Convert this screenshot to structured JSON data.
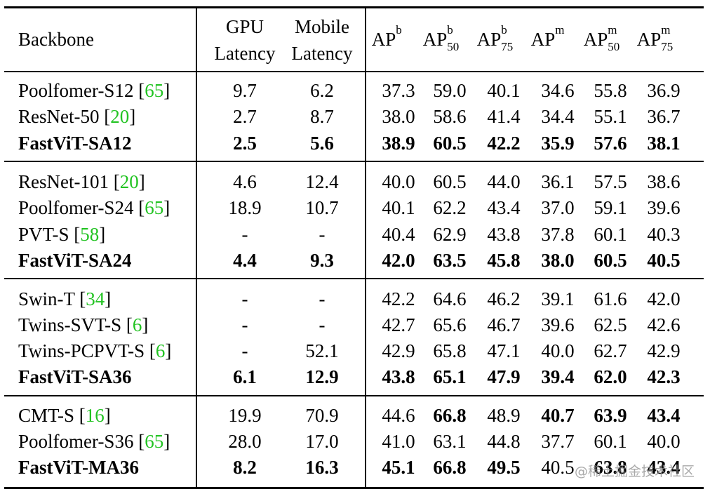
{
  "header": {
    "backbone": "Backbone",
    "gpu_line1": "GPU",
    "gpu_line2": "Latency",
    "mobile_line1": "Mobile",
    "mobile_line2": "Latency",
    "ap_columns": [
      {
        "base": "AP",
        "sup": "b",
        "sub": ""
      },
      {
        "base": "AP",
        "sup": "b",
        "sub": "50"
      },
      {
        "base": "AP",
        "sup": "b",
        "sub": "75"
      },
      {
        "base": "AP",
        "sup": "m",
        "sub": ""
      },
      {
        "base": "AP",
        "sup": "m",
        "sub": "50"
      },
      {
        "base": "AP",
        "sup": "m",
        "sub": "75"
      }
    ]
  },
  "groups": [
    {
      "rows": [
        {
          "name": "Poolfomer-S12 ",
          "ref": "65",
          "gpu": "9.7",
          "mobile": "6.2",
          "ap": [
            "37.3",
            "59.0",
            "40.1",
            "34.6",
            "55.8",
            "36.9"
          ],
          "bold_name": false,
          "bold_lat": false,
          "bold_ap": [
            false,
            false,
            false,
            false,
            false,
            false
          ]
        },
        {
          "name": "ResNet-50 ",
          "ref": "20",
          "gpu": "2.7",
          "mobile": "8.7",
          "ap": [
            "38.0",
            "58.6",
            "41.4",
            "34.4",
            "55.1",
            "36.7"
          ],
          "bold_name": false,
          "bold_lat": false,
          "bold_ap": [
            false,
            false,
            false,
            false,
            false,
            false
          ]
        },
        {
          "name": "FastViT-SA12",
          "ref": "",
          "gpu": "2.5",
          "mobile": "5.6",
          "ap": [
            "38.9",
            "60.5",
            "42.2",
            "35.9",
            "57.6",
            "38.1"
          ],
          "bold_name": true,
          "bold_lat": true,
          "bold_ap": [
            true,
            true,
            true,
            true,
            true,
            true
          ]
        }
      ]
    },
    {
      "rows": [
        {
          "name": "ResNet-101 ",
          "ref": "20",
          "gpu": "4.6",
          "mobile": "12.4",
          "ap": [
            "40.0",
            "60.5",
            "44.0",
            "36.1",
            "57.5",
            "38.6"
          ],
          "bold_name": false,
          "bold_lat": false,
          "bold_ap": [
            false,
            false,
            false,
            false,
            false,
            false
          ]
        },
        {
          "name": "Poolfomer-S24 ",
          "ref": "65",
          "gpu": "18.9",
          "mobile": "10.7",
          "ap": [
            "40.1",
            "62.2",
            "43.4",
            "37.0",
            "59.1",
            "39.6"
          ],
          "bold_name": false,
          "bold_lat": false,
          "bold_ap": [
            false,
            false,
            false,
            false,
            false,
            false
          ]
        },
        {
          "name": "PVT-S ",
          "ref": "58",
          "gpu": "-",
          "mobile": "-",
          "ap": [
            "40.4",
            "62.9",
            "43.8",
            "37.8",
            "60.1",
            "40.3"
          ],
          "bold_name": false,
          "bold_lat": false,
          "bold_ap": [
            false,
            false,
            false,
            false,
            false,
            false
          ]
        },
        {
          "name": "FastViT-SA24",
          "ref": "",
          "gpu": "4.4",
          "mobile": "9.3",
          "ap": [
            "42.0",
            "63.5",
            "45.8",
            "38.0",
            "60.5",
            "40.5"
          ],
          "bold_name": true,
          "bold_lat": true,
          "bold_ap": [
            true,
            true,
            true,
            true,
            true,
            true
          ]
        }
      ]
    },
    {
      "rows": [
        {
          "name": "Swin-T ",
          "ref": "34",
          "gpu": "-",
          "mobile": "-",
          "ap": [
            "42.2",
            "64.6",
            "46.2",
            "39.1",
            "61.6",
            "42.0"
          ],
          "bold_name": false,
          "bold_lat": false,
          "bold_ap": [
            false,
            false,
            false,
            false,
            false,
            false
          ]
        },
        {
          "name": "Twins-SVT-S ",
          "ref": "6",
          "gpu": "-",
          "mobile": "-",
          "ap": [
            "42.7",
            "65.6",
            "46.7",
            "39.6",
            "62.5",
            "42.6"
          ],
          "bold_name": false,
          "bold_lat": false,
          "bold_ap": [
            false,
            false,
            false,
            false,
            false,
            false
          ]
        },
        {
          "name": "Twins-PCPVT-S ",
          "ref": "6",
          "gpu": "-",
          "mobile": "52.1",
          "ap": [
            "42.9",
            "65.8",
            "47.1",
            "40.0",
            "62.7",
            "42.9"
          ],
          "bold_name": false,
          "bold_lat": false,
          "bold_ap": [
            false,
            false,
            false,
            false,
            false,
            false
          ]
        },
        {
          "name": "FastViT-SA36",
          "ref": "",
          "gpu": "6.1",
          "mobile": "12.9",
          "ap": [
            "43.8",
            "65.1",
            "47.9",
            "39.4",
            "62.0",
            "42.3"
          ],
          "bold_name": true,
          "bold_lat": true,
          "bold_ap": [
            true,
            true,
            true,
            true,
            true,
            true
          ]
        }
      ]
    },
    {
      "rows": [
        {
          "name": "CMT-S ",
          "ref": "16",
          "gpu": "19.9",
          "mobile": "70.9",
          "ap": [
            "44.6",
            "66.8",
            "48.9",
            "40.7",
            "63.9",
            "43.4"
          ],
          "bold_name": false,
          "bold_lat": false,
          "bold_ap": [
            false,
            true,
            false,
            true,
            true,
            true
          ]
        },
        {
          "name": "Poolfomer-S36 ",
          "ref": "65",
          "gpu": "28.0",
          "mobile": "17.0",
          "ap": [
            "41.0",
            "63.1",
            "44.8",
            "37.7",
            "60.1",
            "40.0"
          ],
          "bold_name": false,
          "bold_lat": false,
          "bold_ap": [
            false,
            false,
            false,
            false,
            false,
            false
          ]
        },
        {
          "name": "FastViT-MA36",
          "ref": "",
          "gpu": "8.2",
          "mobile": "16.3",
          "ap": [
            "45.1",
            "66.8",
            "49.5",
            "40.5",
            "63.8",
            "43.4"
          ],
          "bold_name": true,
          "bold_lat": true,
          "bold_ap": [
            true,
            true,
            true,
            false,
            true,
            true
          ]
        }
      ]
    }
  ],
  "watermark": "@稀土掘金技术社区",
  "colors": {
    "reference": "#22c322",
    "text": "#000000",
    "background": "#ffffff"
  }
}
